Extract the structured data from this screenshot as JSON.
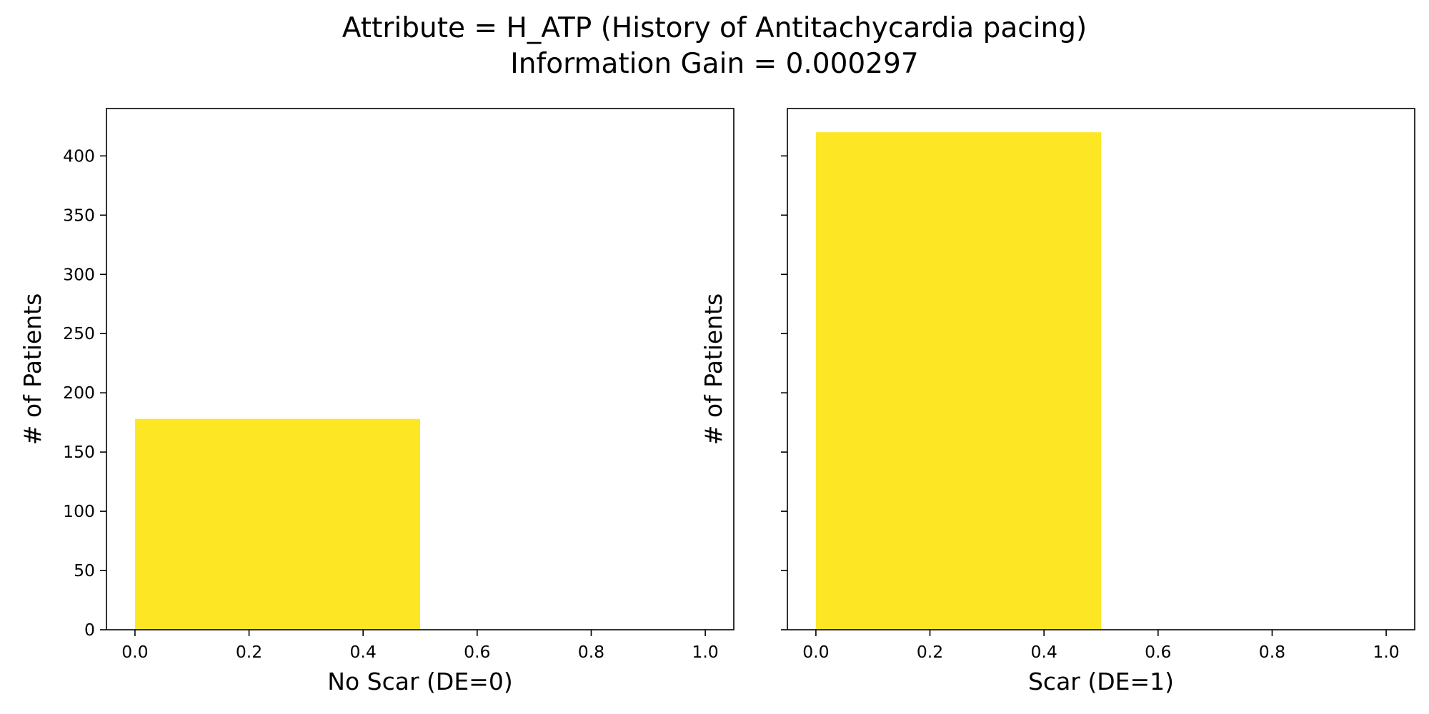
{
  "figure": {
    "title_line1": "Attribute = H_ATP (History of Antitachycardia pacing)",
    "title_line2": "Information Gain = 0.000297"
  },
  "chart_data": [
    {
      "type": "bar",
      "xlabel": "No Scar (DE=0)",
      "ylabel": "# of Patients",
      "xlim": [
        -0.05,
        1.05
      ],
      "ylim": [
        0,
        440
      ],
      "xticks": [
        0.0,
        0.2,
        0.4,
        0.6,
        0.8,
        1.0
      ],
      "xtick_labels": [
        "0.0",
        "0.2",
        "0.4",
        "0.6",
        "0.8",
        "1.0"
      ],
      "yticks": [
        0,
        50,
        100,
        150,
        200,
        250,
        300,
        350,
        400
      ],
      "ytick_labels": [
        "0",
        "50",
        "100",
        "150",
        "200",
        "250",
        "300",
        "350",
        "400"
      ],
      "show_ytick_labels": true,
      "bars": [
        {
          "x_start": 0.0,
          "x_end": 0.5,
          "value": 178
        }
      ],
      "bar_color": "#fde725",
      "grid": false
    },
    {
      "type": "bar",
      "xlabel": "Scar (DE=1)",
      "ylabel": "# of Patients",
      "xlim": [
        -0.05,
        1.05
      ],
      "ylim": [
        0,
        440
      ],
      "xticks": [
        0.0,
        0.2,
        0.4,
        0.6,
        0.8,
        1.0
      ],
      "xtick_labels": [
        "0.0",
        "0.2",
        "0.4",
        "0.6",
        "0.8",
        "1.0"
      ],
      "yticks": [
        0,
        50,
        100,
        150,
        200,
        250,
        300,
        350,
        400
      ],
      "ytick_labels": [],
      "show_ytick_labels": false,
      "bars": [
        {
          "x_start": 0.0,
          "x_end": 0.5,
          "value": 420
        }
      ],
      "bar_color": "#fde725",
      "grid": false
    }
  ]
}
